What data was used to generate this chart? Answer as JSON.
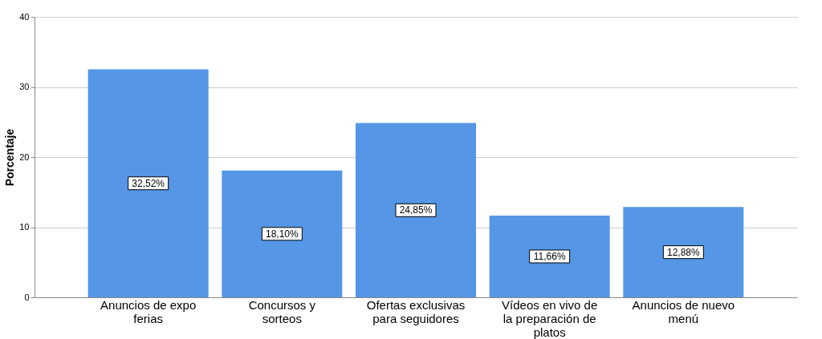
{
  "chart_data": {
    "type": "bar",
    "ylabel": "Porcentaje",
    "categories": [
      "Anuncios de expo ferias",
      "Concursos y sorteos",
      "Ofertas exclusivas para seguidores",
      "Vídeos en vivo de la preparación de platos",
      "Anuncios de nuevo menú"
    ],
    "values": [
      32.52,
      18.1,
      24.85,
      11.66,
      12.88
    ],
    "value_labels": [
      "32,52%",
      "18,10%",
      "24,85%",
      "11,66%",
      "12,88%"
    ],
    "color": "#5596e6",
    "ylim": [
      0,
      40
    ],
    "yticks": [
      0,
      10,
      20,
      30,
      40
    ],
    "grid": "y"
  }
}
